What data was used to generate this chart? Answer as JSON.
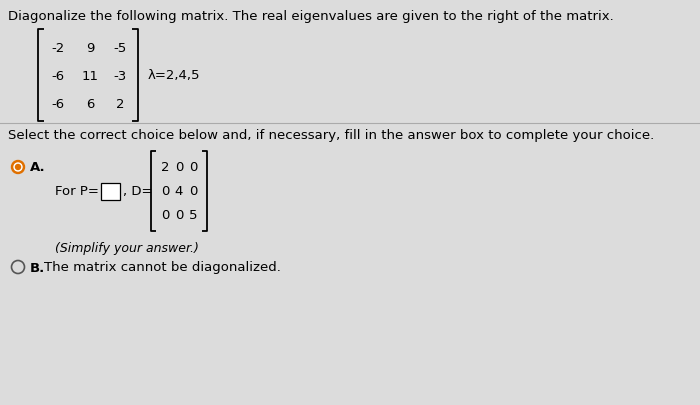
{
  "bg_color": "#dcdcdc",
  "title_text": "Diagonalize the following matrix. The real eigenvalues are given to the right of the matrix.",
  "matrix_A": [
    [
      "-2",
      "9",
      "-5"
    ],
    [
      "-6",
      "11",
      "-3"
    ],
    [
      "-6",
      "6",
      "2"
    ]
  ],
  "eigenvalues_text": "λ=2,4,5",
  "select_text": "Select the correct choice below and, if necessary, fill in the answer box to complete your choice.",
  "matrix_D": [
    [
      "2",
      "0",
      "0"
    ],
    [
      "0",
      "4",
      "0"
    ],
    [
      "0",
      "0",
      "5"
    ]
  ],
  "simplify_text": "(Simplify your answer.)",
  "option_B_text": "The matrix cannot be diagonalized.",
  "font_size_title": 9.5,
  "font_size_body": 9.5,
  "font_size_matrix": 9.5,
  "radio_A_color": "#e07000",
  "radio_B_color": "#555555"
}
